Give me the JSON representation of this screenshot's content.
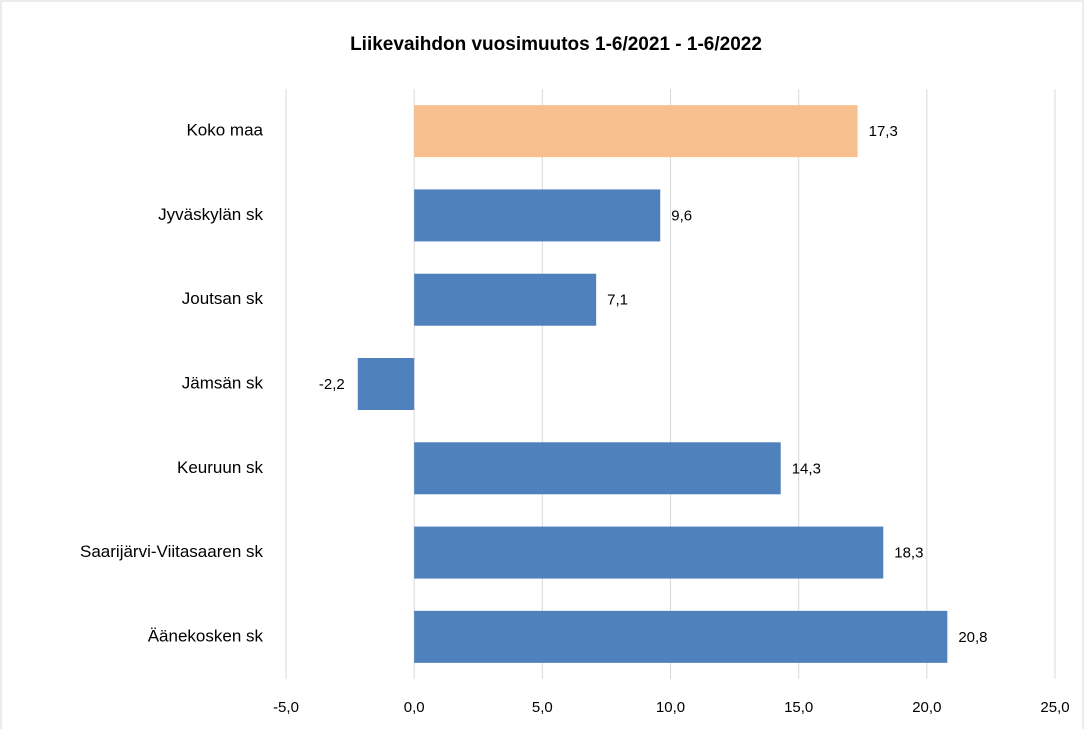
{
  "chart_data": {
    "type": "barh",
    "title": "Liikevaihdon vuosimuutos 1-6/2021 - 1-6/2022",
    "categories": [
      "Koko maa",
      "Jyväskylän sk",
      "Joutsan sk",
      "Jämsän sk",
      "Keuruun sk",
      "Saarijärvi-Viitasaaren sk",
      "Äänekosken sk"
    ],
    "values": [
      17.3,
      9.6,
      7.1,
      -2.2,
      14.3,
      18.3,
      20.8
    ],
    "value_labels": [
      "17,3",
      "9,6",
      "7,1",
      "-2,2",
      "14,3",
      "18,3",
      "20,8"
    ],
    "colors": [
      "#f9c08f",
      "#4f81bd",
      "#4f81bd",
      "#4f81bd",
      "#4f81bd",
      "#4f81bd",
      "#4f81bd"
    ],
    "xlim": [
      -5,
      25
    ],
    "xticks": [
      {
        "value": -5,
        "label": "-5,0"
      },
      {
        "value": 0,
        "label": "0,0"
      },
      {
        "value": 5,
        "label": "5,0"
      },
      {
        "value": 10,
        "label": "10,0"
      },
      {
        "value": 15,
        "label": "15,0"
      },
      {
        "value": 20,
        "label": "20,0"
      },
      {
        "value": 25,
        "label": "25,0"
      }
    ],
    "grid": true
  }
}
